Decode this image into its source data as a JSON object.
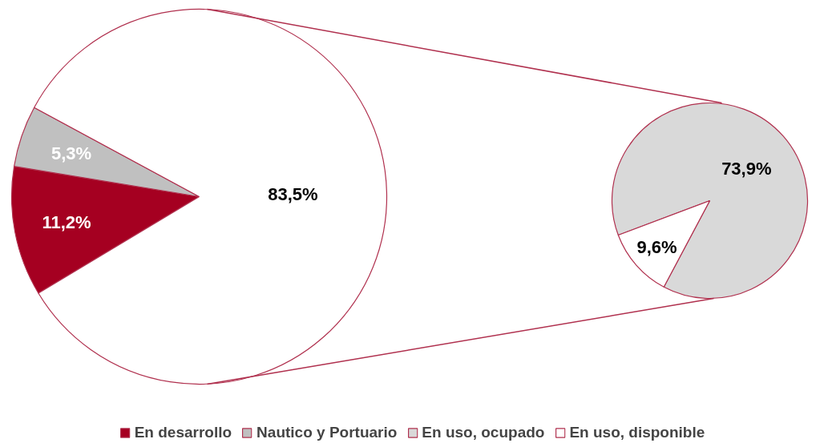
{
  "chart_data": [
    {
      "type": "pie",
      "categories": [
        "En desarrollo",
        "Nautico y Portuario",
        null
      ],
      "values": [
        11.2,
        5.3,
        83.5
      ],
      "colors": [
        "#a50021",
        "#c0c0c0",
        "#ffffff"
      ],
      "value_labels": [
        "11,2%",
        "5,3%",
        "83,5%"
      ],
      "legend": "bottom"
    },
    {
      "type": "pie",
      "categories": [
        "En uso, ocupado",
        "En uso, disponible"
      ],
      "values": [
        73.9,
        9.6
      ],
      "colors": [
        "#d9d9d9",
        "#ffffff"
      ],
      "value_labels": [
        "73,9%",
        "9,6%"
      ],
      "legend": "bottom"
    }
  ]
}
